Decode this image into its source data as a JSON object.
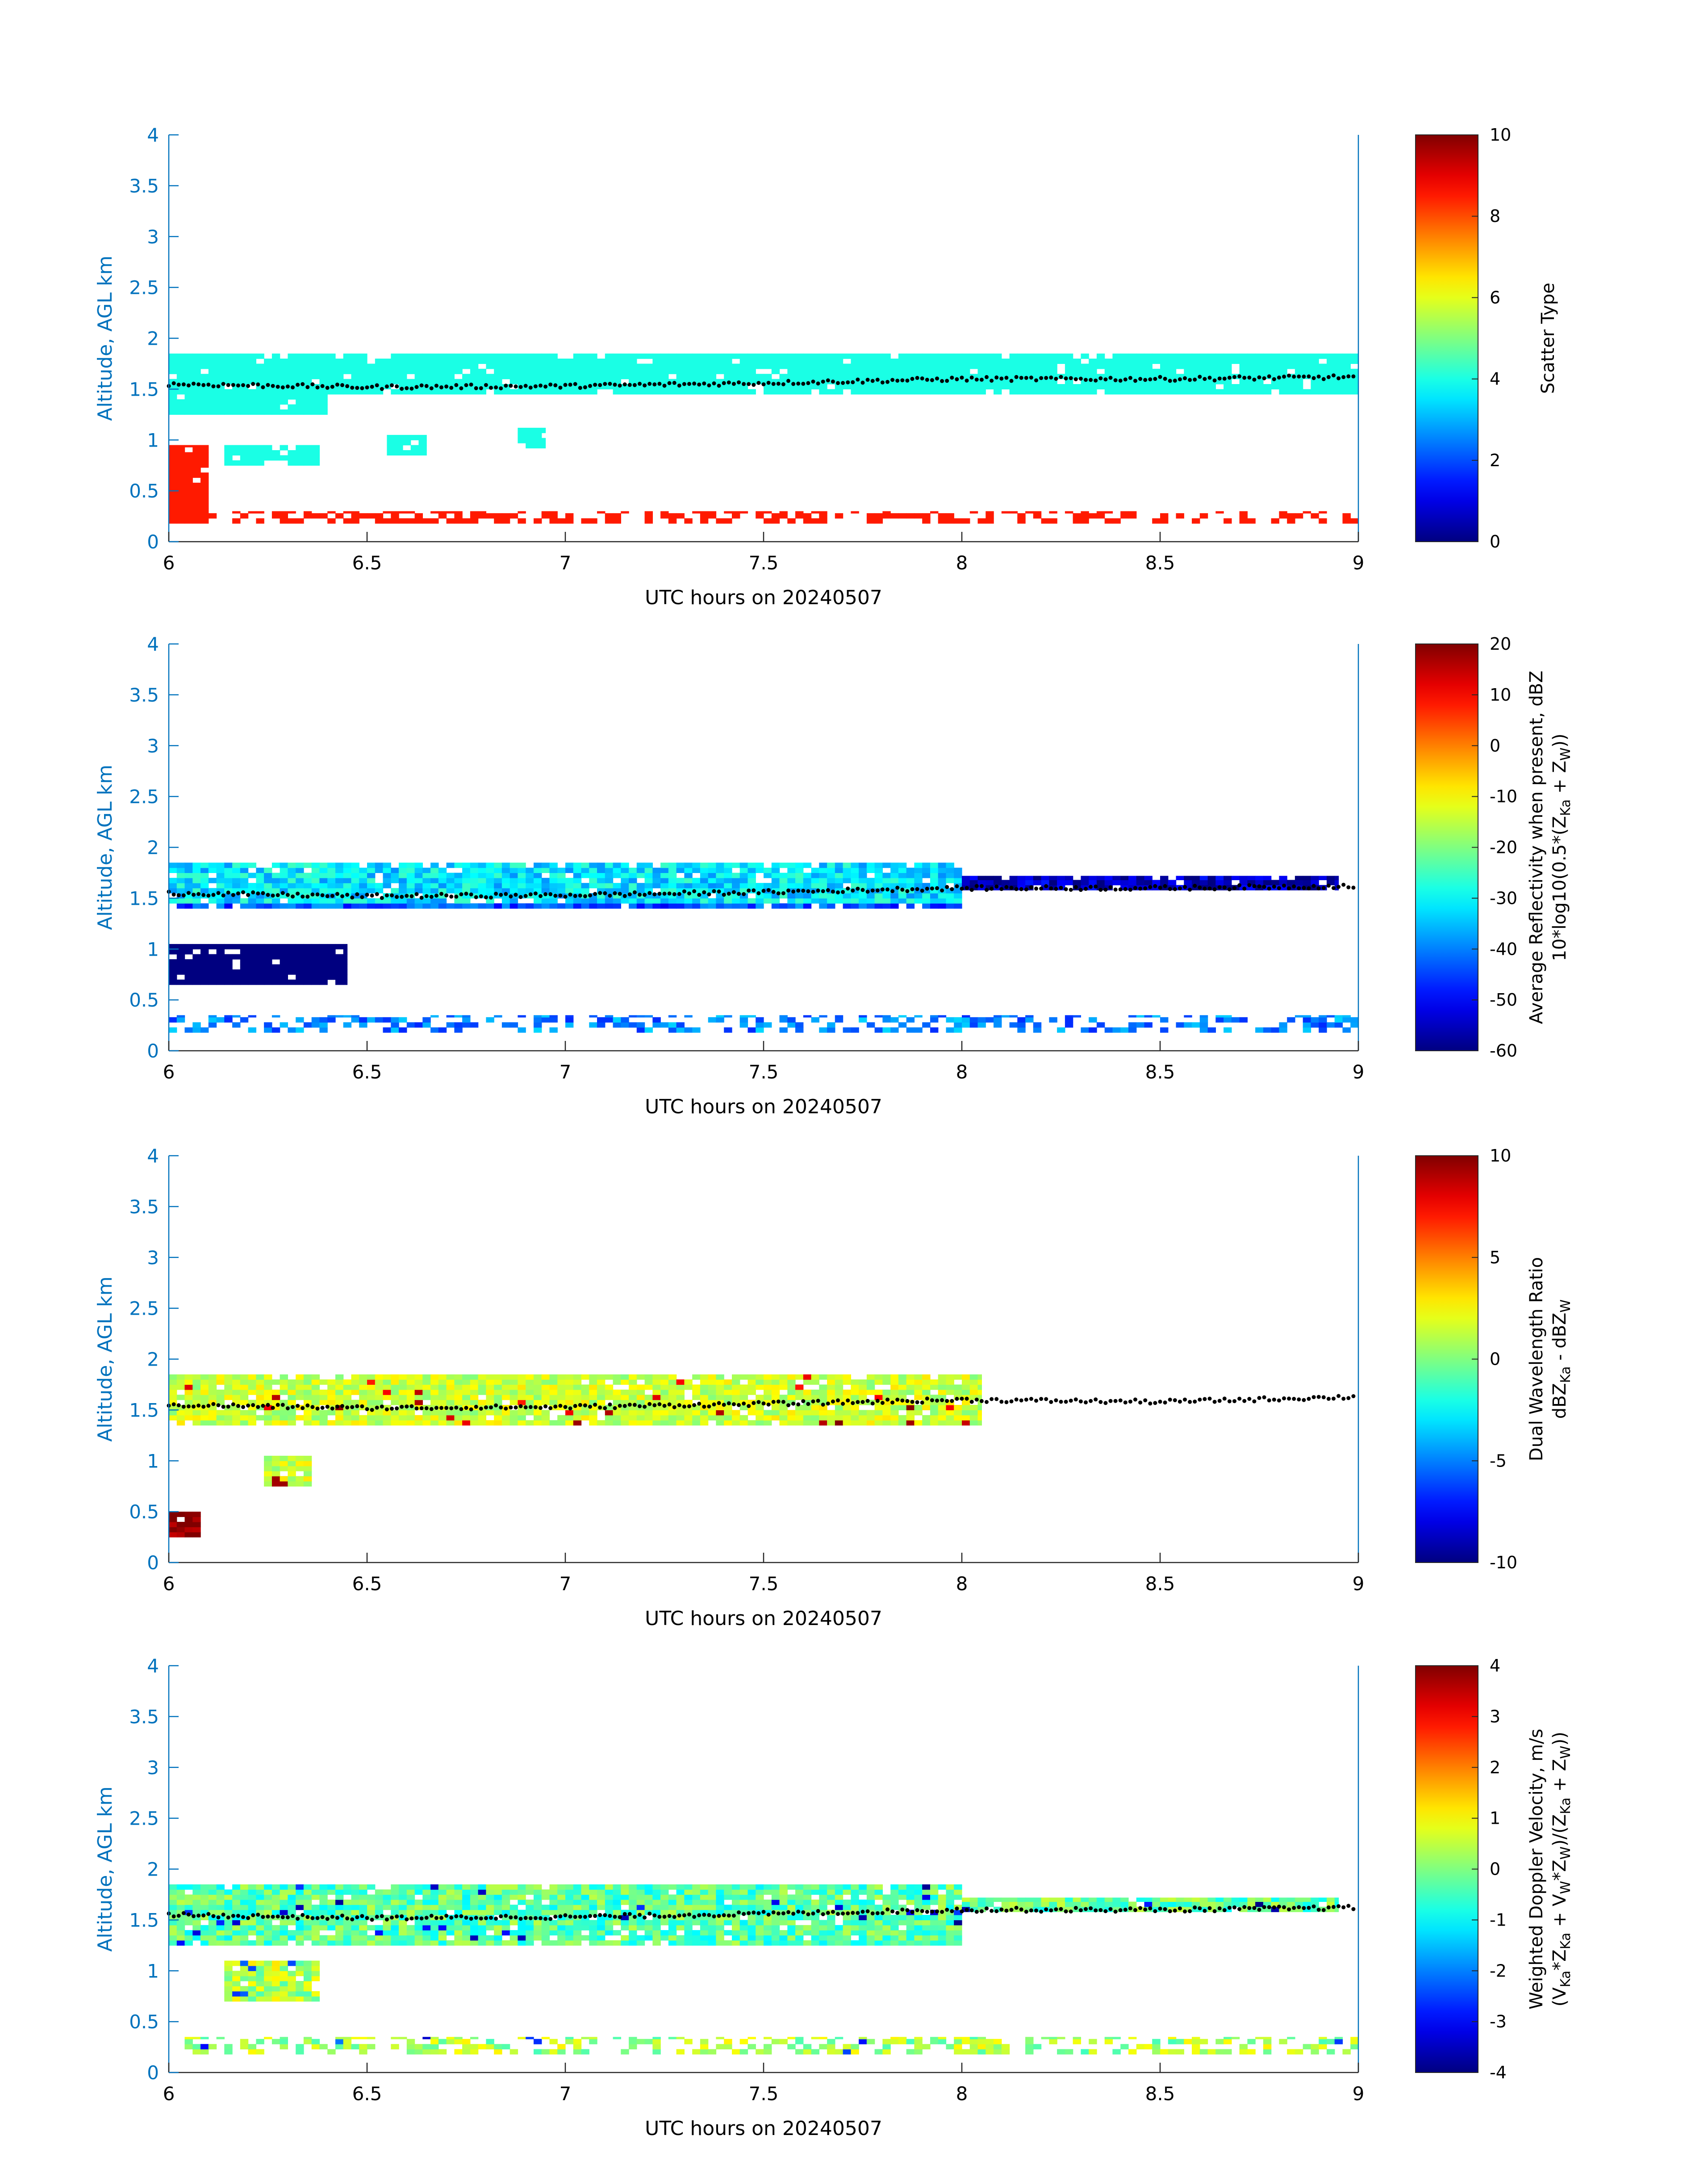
{
  "chart_data": [
    {
      "type": "heatmap",
      "xlabel": "UTC hours on 20240507",
      "ylabel": "Altitude, AGL km",
      "xlim": [
        6,
        9
      ],
      "ylim": [
        0,
        4
      ],
      "xticks": [
        "6",
        "6.5",
        "7",
        "7.5",
        "8",
        "8.5",
        "9"
      ],
      "yticks": [
        "0",
        "0.5",
        "1",
        "1.5",
        "2",
        "2.5",
        "3",
        "3.5",
        "4"
      ],
      "colorbar": {
        "label_lines": [
          "Scatter Type"
        ],
        "clim": [
          0,
          10
        ],
        "ticks": [
          "0",
          "2",
          "4",
          "6",
          "8",
          "10"
        ]
      },
      "regions": [
        {
          "x": [
            6.0,
            9.0
          ],
          "y": [
            1.45,
            1.85
          ],
          "value": 4,
          "note": "main layer"
        },
        {
          "x": [
            6.0,
            6.4
          ],
          "y": [
            1.25,
            1.45
          ],
          "value": 4
        },
        {
          "x": [
            6.14,
            6.38
          ],
          "y": [
            0.75,
            0.95
          ],
          "value": 4
        },
        {
          "x": [
            6.55,
            6.65
          ],
          "y": [
            0.85,
            1.05
          ],
          "value": 4
        },
        {
          "x": [
            6.88,
            6.95
          ],
          "y": [
            0.92,
            1.12
          ],
          "value": 4
        },
        {
          "x": [
            6.0,
            6.1
          ],
          "y": [
            0.18,
            0.95
          ],
          "value": 8.5
        },
        {
          "x": [
            6.1,
            9.0
          ],
          "y": [
            0.18,
            0.3
          ],
          "value": 8.5,
          "note": "sparse near-surface returns"
        }
      ],
      "cloud_base": {
        "x": [
          6.0,
          6.5,
          7.0,
          7.5,
          8.0,
          8.5,
          9.0
        ],
        "y": [
          1.55,
          1.52,
          1.53,
          1.56,
          1.6,
          1.6,
          1.62
        ]
      }
    },
    {
      "type": "heatmap",
      "xlabel": "UTC hours on 20240507",
      "ylabel": "Altitude, AGL km",
      "xlim": [
        6,
        9
      ],
      "ylim": [
        0,
        4
      ],
      "xticks": [
        "6",
        "6.5",
        "7",
        "7.5",
        "8",
        "8.5",
        "9"
      ],
      "yticks": [
        "0",
        "0.5",
        "1",
        "1.5",
        "2",
        "2.5",
        "3",
        "3.5",
        "4"
      ],
      "colorbar": {
        "label_lines": [
          "Average Reflectivity when present, dBZ",
          "10*log10(0.5*(Z",
          "Ka",
          " + Z",
          "W",
          "))"
        ],
        "clim": [
          -60,
          20
        ],
        "ticks": [
          "-60",
          "-50",
          "-40",
          "-30",
          "-20",
          "-10",
          "0",
          "10",
          "20"
        ]
      },
      "regions": [
        {
          "x": [
            6.0,
            8.0
          ],
          "y": [
            1.4,
            1.85
          ],
          "value": -32,
          "note": "main layer core"
        },
        {
          "x": [
            8.0,
            8.95
          ],
          "y": [
            1.58,
            1.72
          ],
          "value": -55
        },
        {
          "x": [
            6.0,
            6.45
          ],
          "y": [
            0.65,
            1.05
          ],
          "value": -58
        },
        {
          "x": [
            6.0,
            9.0
          ],
          "y": [
            0.18,
            0.35
          ],
          "value": -40,
          "note": "sparse near-surface returns"
        }
      ],
      "cloud_base": {
        "x": [
          6.0,
          6.5,
          7.0,
          7.5,
          8.0,
          8.5,
          9.0
        ],
        "y": [
          1.55,
          1.52,
          1.53,
          1.56,
          1.6,
          1.6,
          1.62
        ]
      }
    },
    {
      "type": "heatmap",
      "xlabel": "UTC hours on 20240507",
      "ylabel": "Altitude, AGL km",
      "xlim": [
        6,
        9
      ],
      "ylim": [
        0,
        4
      ],
      "xticks": [
        "6",
        "6.5",
        "7",
        "7.5",
        "8",
        "8.5",
        "9"
      ],
      "yticks": [
        "0",
        "0.5",
        "1",
        "1.5",
        "2",
        "2.5",
        "3",
        "3.5",
        "4"
      ],
      "colorbar": {
        "label_lines": [
          "Dual Wavelength Ratio",
          "dBZ",
          "Ka",
          " - dBZ",
          "W"
        ],
        "clim": [
          -10,
          10
        ],
        "ticks": [
          "-10",
          "-5",
          "0",
          "5",
          "10"
        ]
      },
      "regions": [
        {
          "x": [
            6.0,
            8.05
          ],
          "y": [
            1.35,
            1.85
          ],
          "value": 1.5,
          "note": "main layer"
        },
        {
          "x": [
            6.24,
            6.36
          ],
          "y": [
            0.75,
            1.05
          ],
          "value": 1.5
        },
        {
          "x": [
            6.0,
            6.08
          ],
          "y": [
            0.25,
            0.5
          ],
          "value": 10
        }
      ],
      "cloud_base": {
        "x": [
          6.0,
          6.5,
          7.0,
          7.5,
          8.0,
          8.5,
          9.0
        ],
        "y": [
          1.55,
          1.52,
          1.53,
          1.56,
          1.6,
          1.58,
          1.63
        ]
      }
    },
    {
      "type": "heatmap",
      "xlabel": "UTC hours on 20240507",
      "ylabel": "Altitude, AGL km",
      "xlim": [
        6,
        9
      ],
      "ylim": [
        0,
        4
      ],
      "xticks": [
        "6",
        "6.5",
        "7",
        "7.5",
        "8",
        "8.5",
        "9"
      ],
      "yticks": [
        "0",
        "0.5",
        "1",
        "1.5",
        "2",
        "2.5",
        "3",
        "3.5",
        "4"
      ],
      "colorbar": {
        "label_lines": [
          "Weighted Doppler Velocity, m/s",
          "(V",
          "Ka",
          "*Z",
          "Ka",
          " + V",
          "W",
          "*Z",
          "W",
          ")/(Z",
          "Ka",
          " + Z",
          "W",
          "))"
        ],
        "clim": [
          -4,
          4
        ],
        "ticks": [
          "-4",
          "-3",
          "-2",
          "-1",
          "0",
          "1",
          "2",
          "3",
          "4"
        ]
      },
      "regions": [
        {
          "x": [
            6.0,
            8.0
          ],
          "y": [
            1.25,
            1.85
          ],
          "value": -0.3,
          "note": "main layer"
        },
        {
          "x": [
            8.0,
            8.95
          ],
          "y": [
            1.58,
            1.72
          ],
          "value": -0.2
        },
        {
          "x": [
            6.14,
            6.38
          ],
          "y": [
            0.7,
            1.1
          ],
          "value": 0.4
        },
        {
          "x": [
            6.0,
            9.0
          ],
          "y": [
            0.18,
            0.35
          ],
          "value": 0.3,
          "note": "sparse near-surface returns"
        }
      ],
      "cloud_base": {
        "x": [
          6.0,
          6.5,
          7.0,
          7.5,
          8.0,
          8.5,
          9.0
        ],
        "y": [
          1.55,
          1.52,
          1.53,
          1.56,
          1.6,
          1.6,
          1.62
        ]
      }
    }
  ]
}
